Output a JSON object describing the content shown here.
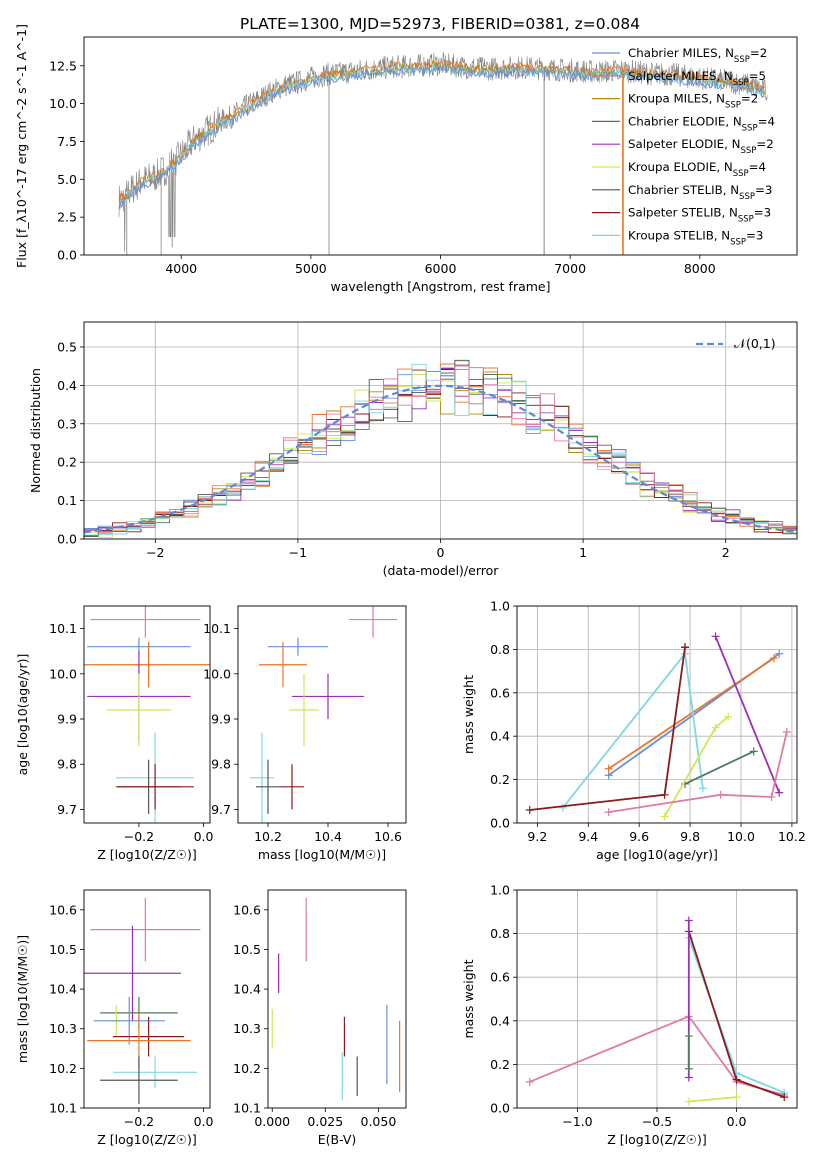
{
  "figure": {
    "title": "PLATE=1300, MJD=52973, FIBERID=0381, z=0.084"
  },
  "colors": {
    "chabrier_miles": "#6a8fd8",
    "salpeter_miles": "#e8772e",
    "kroupa_miles": "#b8860b",
    "chabrier_elodie": "#4f7a5e",
    "salpeter_elodie": "#9b30b8",
    "kroupa_elodie": "#cfe85a",
    "chabrier_stelib": "#555555",
    "salpeter_stelib": "#8b1a1a",
    "kroupa_stelib": "#7fd8e0",
    "data": "#808080",
    "normal_curve": "#5b8bd6",
    "extra_pink": "#e07aa8"
  },
  "chart_data": [
    {
      "id": "spectrum",
      "type": "line",
      "title": "PLATE=1300, MJD=52973, FIBERID=0381, z=0.084",
      "xlabel": "wavelength [Angstrom, rest frame]",
      "ylabel": "Flux [f_λ10^-17 erg cm^-2 s^-1 A^-1]",
      "xlim": [
        3250,
        8750
      ],
      "ylim": [
        0,
        14.4
      ],
      "xticks": [
        4000,
        5000,
        6000,
        7000,
        8000
      ],
      "yticks": [
        0.0,
        2.5,
        5.0,
        7.5,
        10.0,
        12.5
      ],
      "grid": false,
      "legend_position": "right",
      "legend": [
        {
          "label": "Chabrier MILES, N_SSP=2",
          "color_key": "chabrier_miles"
        },
        {
          "label": "Salpeter MILES, N_SSP=5",
          "color_key": "salpeter_miles"
        },
        {
          "label": "Kroupa MILES, N_SSP=2",
          "color_key": "kroupa_miles"
        },
        {
          "label": "Chabrier ELODIE, N_SSP=4",
          "color_key": "chabrier_elodie"
        },
        {
          "label": "Salpeter ELODIE, N_SSP=2",
          "color_key": "salpeter_elodie"
        },
        {
          "label": "Kroupa ELODIE, N_SSP=4",
          "color_key": "kroupa_elodie"
        },
        {
          "label": "Chabrier STELIB, N_SSP=3",
          "color_key": "chabrier_stelib"
        },
        {
          "label": "Salpeter STELIB, N_SSP=3",
          "color_key": "salpeter_stelib"
        },
        {
          "label": "Kroupa STELIB, N_SSP=3",
          "color_key": "kroupa_stelib"
        }
      ],
      "continuum": [
        [
          3520,
          3.6
        ],
        [
          3600,
          4.2
        ],
        [
          3700,
          4.9
        ],
        [
          3800,
          5.2
        ],
        [
          3900,
          5.8
        ],
        [
          4000,
          6.6
        ],
        [
          4100,
          7.6
        ],
        [
          4200,
          8.2
        ],
        [
          4300,
          8.8
        ],
        [
          4400,
          9.2
        ],
        [
          4500,
          9.8
        ],
        [
          4600,
          10.3
        ],
        [
          4700,
          10.8
        ],
        [
          4800,
          11.2
        ],
        [
          4900,
          11.4
        ],
        [
          5000,
          11.7
        ],
        [
          5100,
          11.9
        ],
        [
          5200,
          12.0
        ],
        [
          5400,
          12.2
        ],
        [
          5600,
          12.4
        ],
        [
          5800,
          12.5
        ],
        [
          6000,
          12.6
        ],
        [
          6200,
          12.4
        ],
        [
          6400,
          12.3
        ],
        [
          6600,
          12.4
        ],
        [
          6800,
          12.3
        ],
        [
          7000,
          12.2
        ],
        [
          7200,
          12.1
        ],
        [
          7400,
          12.2
        ],
        [
          7600,
          12.0
        ],
        [
          7800,
          11.9
        ],
        [
          8000,
          11.7
        ],
        [
          8200,
          11.5
        ],
        [
          8400,
          11.2
        ],
        [
          8520,
          10.8
        ]
      ]
    },
    {
      "id": "residuals",
      "type": "histogram",
      "xlabel": "(data-model)/error",
      "ylabel": "Normed distribution",
      "xlim": [
        -2.5,
        2.5
      ],
      "ylim": [
        0,
        0.565
      ],
      "xticks": [
        -2,
        -1,
        0,
        1,
        2
      ],
      "yticks": [
        0.0,
        0.1,
        0.2,
        0.3,
        0.4,
        0.5
      ],
      "grid": true,
      "legend_position": "top-right",
      "legend": [
        {
          "label": "𝒩(0,1)",
          "color_key": "normal_curve"
        }
      ]
    },
    {
      "id": "age_vs_Z",
      "type": "scatter",
      "xlabel": "Z [log10(Z/Z☉)]",
      "ylabel": "age  [log10(age/yr)]",
      "xlim": [
        -0.37,
        0.02
      ],
      "ylim": [
        9.67,
        10.15
      ],
      "xticks": [
        -0.2,
        0.0
      ],
      "yticks": [
        9.7,
        9.8,
        9.9,
        10.0,
        10.1
      ],
      "grid": false,
      "points": [
        {
          "color_key": "extra_pink",
          "x": -0.18,
          "xerr": 0.17,
          "y": 10.12,
          "yerr": 0.04
        },
        {
          "color_key": "chabrier_miles",
          "x": -0.2,
          "xerr": 0.16,
          "y": 10.06,
          "yerr": 0.02
        },
        {
          "color_key": "salpeter_miles",
          "x": -0.17,
          "xerr": 0.2,
          "y": 10.02,
          "yerr": 0.05
        },
        {
          "color_key": "salpeter_elodie",
          "x": -0.2,
          "xerr": 0.16,
          "y": 9.95,
          "yerr": 0.1
        },
        {
          "color_key": "kroupa_elodie",
          "x": -0.2,
          "xerr": 0.1,
          "y": 9.92,
          "yerr": 0.08
        },
        {
          "color_key": "kroupa_stelib",
          "x": -0.15,
          "xerr": 0.12,
          "y": 9.77,
          "yerr": 0.1
        },
        {
          "color_key": "chabrier_stelib",
          "x": -0.17,
          "xerr": 0.1,
          "y": 9.75,
          "yerr": 0.06
        },
        {
          "color_key": "salpeter_stelib",
          "x": -0.15,
          "xerr": 0.12,
          "y": 9.75,
          "yerr": 0.05
        }
      ]
    },
    {
      "id": "age_vs_mass",
      "type": "scatter",
      "xlabel": "mass [log10(M/M☉)]",
      "ylabel": "",
      "xlim": [
        10.1,
        10.66
      ],
      "ylim": [
        9.67,
        10.15
      ],
      "xticks": [
        10.2,
        10.4,
        10.6
      ],
      "yticks": [
        9.7,
        9.8,
        9.9,
        10.0,
        10.1
      ],
      "grid": false,
      "points": [
        {
          "color_key": "extra_pink",
          "x": 10.55,
          "xerr": 0.08,
          "y": 10.12,
          "yerr": 0.04
        },
        {
          "color_key": "chabrier_miles",
          "x": 10.3,
          "xerr": 0.1,
          "y": 10.06,
          "yerr": 0.02
        },
        {
          "color_key": "salpeter_miles",
          "x": 10.25,
          "xerr": 0.08,
          "y": 10.02,
          "yerr": 0.05
        },
        {
          "color_key": "salpeter_elodie",
          "x": 10.4,
          "xerr": 0.12,
          "y": 9.95,
          "yerr": 0.05
        },
        {
          "color_key": "kroupa_elodie",
          "x": 10.32,
          "xerr": 0.05,
          "y": 9.92,
          "yerr": 0.08
        },
        {
          "color_key": "kroupa_stelib",
          "x": 10.18,
          "xerr": 0.04,
          "y": 9.77,
          "yerr": 0.1
        },
        {
          "color_key": "chabrier_stelib",
          "x": 10.2,
          "xerr": 0.04,
          "y": 9.75,
          "yerr": 0.06
        },
        {
          "color_key": "salpeter_stelib",
          "x": 10.28,
          "xerr": 0.04,
          "y": 9.75,
          "yerr": 0.05
        }
      ]
    },
    {
      "id": "weight_vs_age",
      "type": "line",
      "xlabel": "age  [log10(age/yr)]",
      "ylabel": "mass weight",
      "xlim": [
        9.12,
        10.22
      ],
      "ylim": [
        0,
        1.0
      ],
      "xticks": [
        9.2,
        9.4,
        9.6,
        9.8,
        10.0,
        10.2
      ],
      "yticks": [
        0.0,
        0.2,
        0.4,
        0.6,
        0.8,
        1.0
      ],
      "grid": true,
      "series": [
        {
          "color_key": "chabrier_miles",
          "x": [
            9.48,
            10.15
          ],
          "y": [
            0.22,
            0.78
          ]
        },
        {
          "color_key": "salpeter_miles",
          "x": [
            9.48,
            10.13
          ],
          "y": [
            0.25,
            0.76
          ]
        },
        {
          "color_key": "salpeter_elodie",
          "x": [
            9.9,
            10.15
          ],
          "y": [
            0.86,
            0.14
          ]
        },
        {
          "color_key": "kroupa_stelib",
          "x": [
            9.3,
            9.78,
            9.85
          ],
          "y": [
            0.07,
            0.78,
            0.16
          ]
        },
        {
          "color_key": "salpeter_stelib",
          "x": [
            9.17,
            9.7,
            9.78,
            9.78
          ],
          "y": [
            0.06,
            0.13,
            0.81,
            0.81
          ]
        },
        {
          "color_key": "chabrier_elodie",
          "x": [
            9.78,
            10.05
          ],
          "y": [
            0.18,
            0.33
          ]
        },
        {
          "color_key": "kroupa_elodie",
          "x": [
            9.7,
            9.9,
            9.95
          ],
          "y": [
            0.03,
            0.44,
            0.49
          ]
        },
        {
          "color_key": "extra_pink",
          "x": [
            9.48,
            9.92,
            10.12,
            10.18
          ],
          "y": [
            0.05,
            0.13,
            0.12,
            0.42
          ]
        }
      ]
    },
    {
      "id": "mass_vs_Z",
      "type": "scatter",
      "xlabel": "Z [log10(Z/Z☉)]",
      "ylabel": "mass [log10(M/M☉)]",
      "xlim": [
        -0.37,
        0.02
      ],
      "ylim": [
        10.1,
        10.65
      ],
      "xticks": [
        -0.2,
        0.0
      ],
      "yticks": [
        10.1,
        10.2,
        10.3,
        10.4,
        10.5,
        10.6
      ],
      "grid": false,
      "points": [
        {
          "color_key": "extra_pink",
          "x": -0.18,
          "xerr": 0.17,
          "y": 10.55,
          "yerr": 0.08
        },
        {
          "color_key": "salpeter_elodie",
          "x": -0.22,
          "xerr": 0.15,
          "y": 10.44,
          "yerr": 0.12
        },
        {
          "color_key": "chabrier_elodie",
          "x": -0.2,
          "xerr": 0.12,
          "y": 10.34,
          "yerr": 0.04
        },
        {
          "color_key": "kroupa_elodie",
          "x": -0.27,
          "xerr": 0.02,
          "y": 10.32,
          "yerr": 0.04
        },
        {
          "color_key": "chabrier_miles",
          "x": -0.23,
          "xerr": 0.11,
          "y": 10.32,
          "yerr": 0.06
        },
        {
          "color_key": "salpeter_stelib",
          "x": -0.17,
          "xerr": 0.11,
          "y": 10.28,
          "yerr": 0.05
        },
        {
          "color_key": "salpeter_miles",
          "x": -0.2,
          "xerr": 0.16,
          "y": 10.27,
          "yerr": 0.07
        },
        {
          "color_key": "kroupa_stelib",
          "x": -0.15,
          "xerr": 0.13,
          "y": 10.19,
          "yerr": 0.04
        },
        {
          "color_key": "chabrier_stelib",
          "x": -0.2,
          "xerr": 0.12,
          "y": 10.17,
          "yerr": 0.06
        }
      ]
    },
    {
      "id": "mass_vs_ebv",
      "type": "scatter",
      "xlabel": "E(B-V)",
      "ylabel": "",
      "xlim": [
        -0.002,
        0.063
      ],
      "ylim": [
        10.1,
        10.65
      ],
      "xticks": [
        0.0,
        0.025,
        0.05
      ],
      "xticklabels": [
        "0.000",
        "0.025",
        "0.050"
      ],
      "yticks": [
        10.1,
        10.2,
        10.3,
        10.4,
        10.5,
        10.6
      ],
      "grid": false,
      "points": [
        {
          "color_key": "extra_pink",
          "x": 0.016,
          "xerr": 0,
          "y": 10.55,
          "yerr": 0.08
        },
        {
          "color_key": "salpeter_elodie",
          "x": 0.003,
          "xerr": 0,
          "y": 10.44,
          "yerr": 0.05
        },
        {
          "color_key": "kroupa_elodie",
          "x": 0.0,
          "xerr": 0,
          "y": 10.3,
          "yerr": 0.05
        },
        {
          "color_key": "chabrier_miles",
          "x": 0.054,
          "xerr": 0,
          "y": 10.26,
          "yerr": 0.1
        },
        {
          "color_key": "salpeter_miles",
          "x": 0.06,
          "xerr": 0,
          "y": 10.23,
          "yerr": 0.09
        },
        {
          "color_key": "salpeter_stelib",
          "x": 0.034,
          "xerr": 0,
          "y": 10.28,
          "yerr": 0.05
        },
        {
          "color_key": "kroupa_stelib",
          "x": 0.033,
          "xerr": 0,
          "y": 10.18,
          "yerr": 0.06
        },
        {
          "color_key": "chabrier_stelib",
          "x": 0.04,
          "xerr": 0,
          "y": 10.18,
          "yerr": 0.05
        }
      ]
    },
    {
      "id": "weight_vs_Z",
      "type": "line",
      "xlabel": "Z [log10(Z/Z☉)]",
      "ylabel": "mass weight",
      "xlim": [
        -1.38,
        0.38
      ],
      "ylim": [
        0,
        1.0
      ],
      "xticks": [
        -1.0,
        -0.5,
        0.0
      ],
      "yticks": [
        0.0,
        0.2,
        0.4,
        0.6,
        0.8,
        1.0
      ],
      "grid": true,
      "series": [
        {
          "color_key": "extra_pink",
          "x": [
            -1.3,
            -0.3,
            0.0,
            0.3
          ],
          "y": [
            0.12,
            0.42,
            0.12,
            0.06
          ]
        },
        {
          "color_key": "kroupa_stelib",
          "x": [
            -0.3,
            0.0,
            0.3
          ],
          "y": [
            0.78,
            0.16,
            0.07
          ]
        },
        {
          "color_key": "salpeter_stelib",
          "x": [
            -0.3,
            0.0,
            0.3
          ],
          "y": [
            0.81,
            0.13,
            0.05
          ]
        },
        {
          "color_key": "kroupa_elodie",
          "x": [
            -0.3,
            0.0
          ],
          "y": [
            0.03,
            0.05
          ]
        },
        {
          "color_key": "salpeter_elodie",
          "x": [
            -0.3,
            -0.3
          ],
          "y": [
            0.86,
            0.14
          ]
        },
        {
          "color_key": "chabrier_elodie",
          "x": [
            -0.3,
            -0.3
          ],
          "y": [
            0.18,
            0.33
          ]
        }
      ]
    }
  ]
}
